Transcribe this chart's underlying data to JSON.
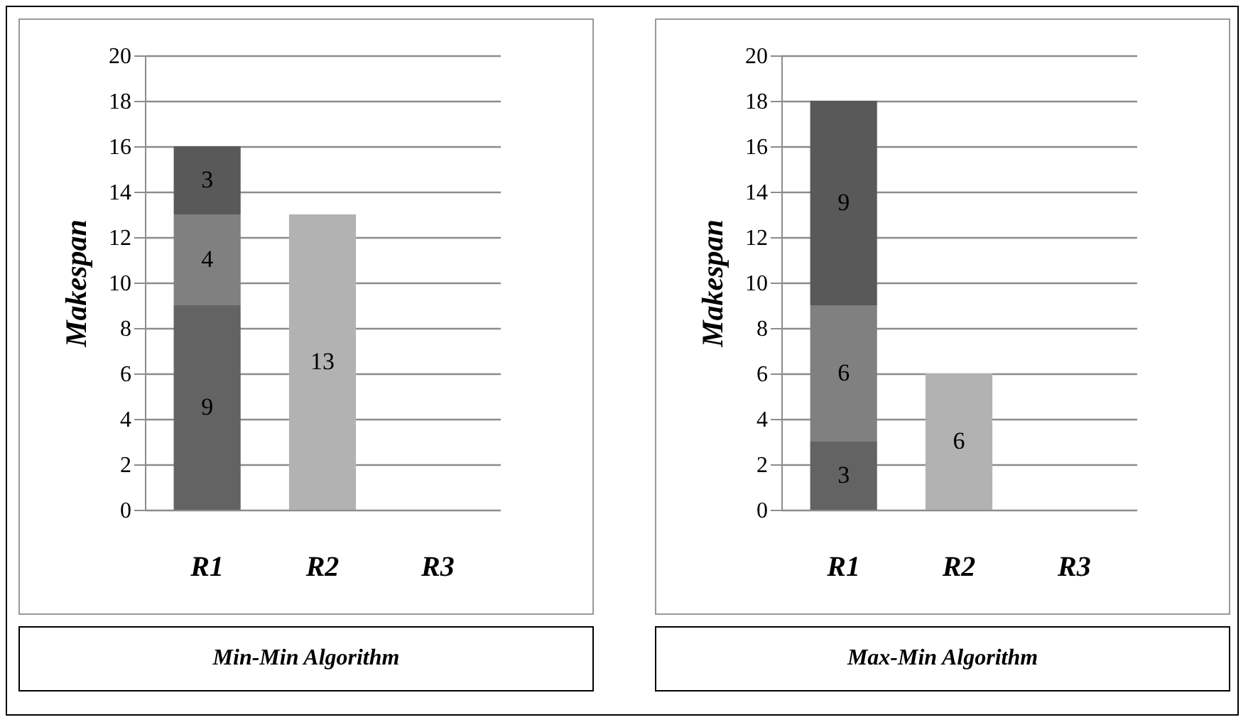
{
  "chart_data": [
    {
      "type": "bar",
      "title": "Min-Min Algorithm",
      "ylabel": "Makespan",
      "categories": [
        "R1",
        "R2",
        "R3"
      ],
      "stacked": true,
      "data_labels": true,
      "grid": "y",
      "ylim": [
        0,
        20
      ],
      "yticks": [
        0,
        2,
        4,
        6,
        8,
        10,
        12,
        14,
        16,
        18,
        20
      ],
      "series": [
        {
          "colors": [
            "#636363",
            "#b2b2b2",
            null
          ],
          "values": [
            9,
            13,
            null
          ]
        },
        {
          "colors": [
            "#808080",
            null,
            null
          ],
          "values": [
            4,
            null,
            null
          ]
        },
        {
          "colors": [
            "#595959",
            null,
            null
          ],
          "values": [
            3,
            null,
            null
          ]
        }
      ]
    },
    {
      "type": "bar",
      "title": "Max-Min Algorithm",
      "ylabel": "Makespan",
      "categories": [
        "R1",
        "R2",
        "R3"
      ],
      "stacked": true,
      "data_labels": true,
      "grid": "y",
      "ylim": [
        0,
        20
      ],
      "yticks": [
        0,
        2,
        4,
        6,
        8,
        10,
        12,
        14,
        16,
        18,
        20
      ],
      "series": [
        {
          "colors": [
            "#636363",
            "#b2b2b2",
            null
          ],
          "values": [
            3,
            6,
            null
          ]
        },
        {
          "colors": [
            "#808080",
            null,
            null
          ],
          "values": [
            6,
            null,
            null
          ]
        },
        {
          "colors": [
            "#595959",
            null,
            null
          ],
          "values": [
            9,
            null,
            null
          ]
        }
      ]
    }
  ]
}
